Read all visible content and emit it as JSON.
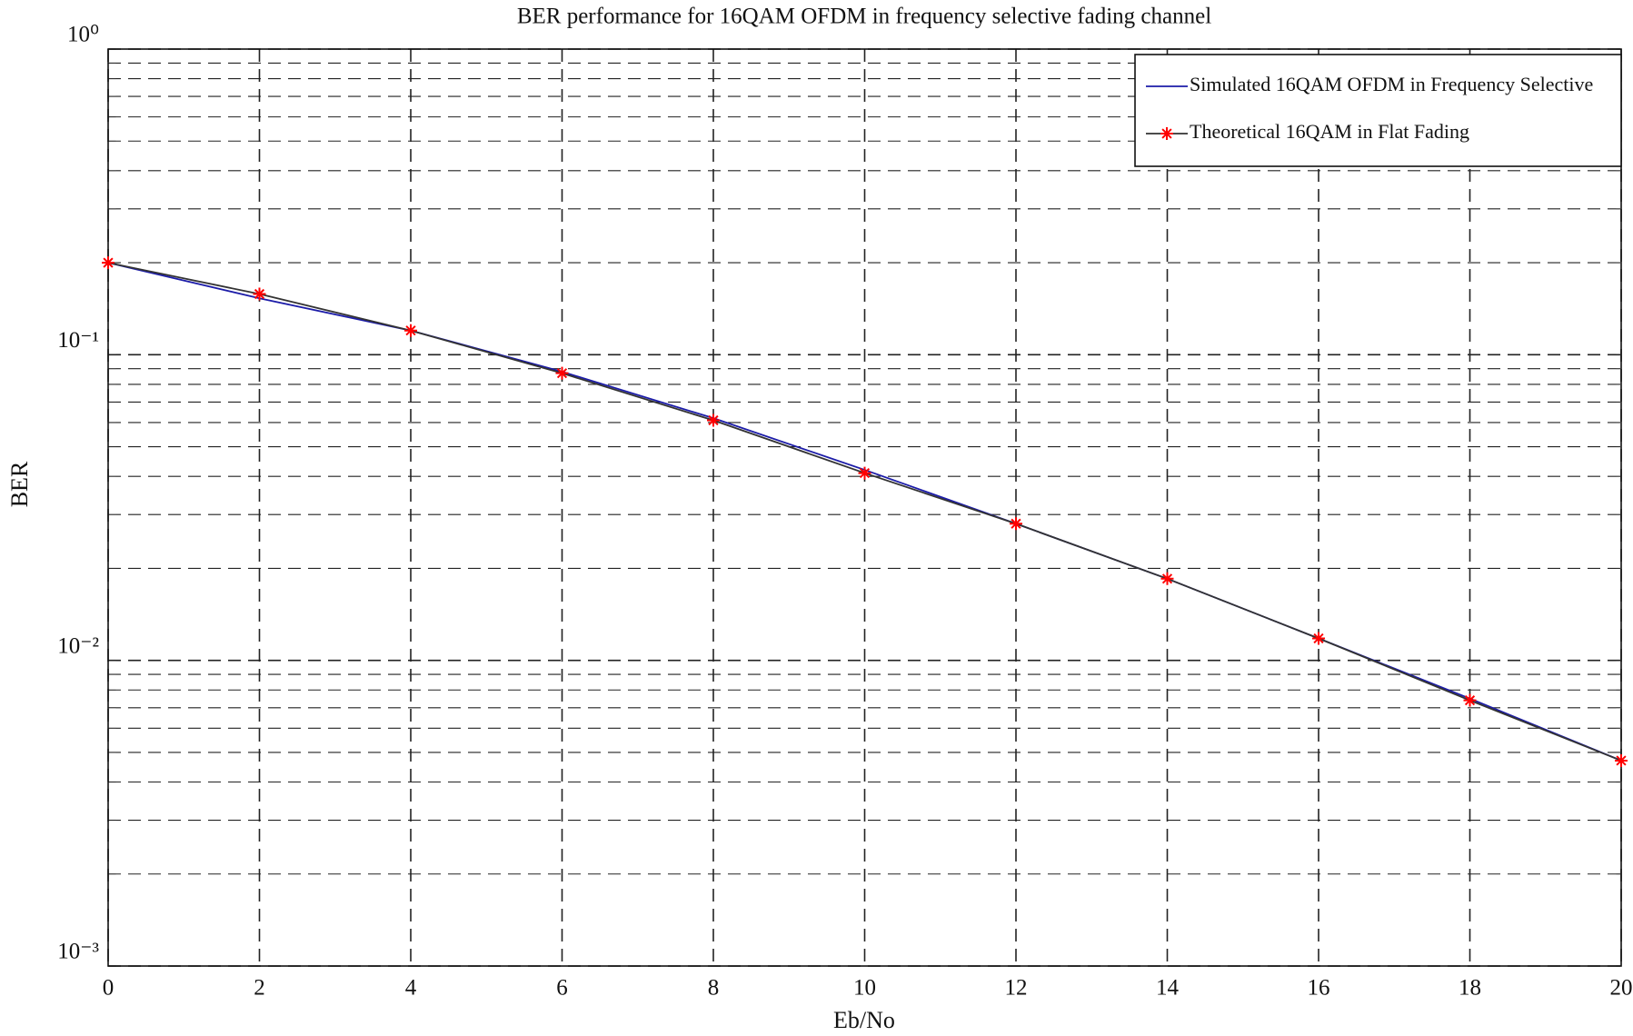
{
  "chart_data": {
    "type": "line",
    "title": "BER performance for 16QAM OFDM in frequency selective fading channel",
    "x_label": "Eb/No",
    "y_label": "BER",
    "x": [
      0,
      2,
      4,
      6,
      8,
      10,
      12,
      14,
      16,
      18,
      20
    ],
    "series": [
      {
        "name": "Simulated 16QAM OFDM in Frequency Selective",
        "color": "#1c1ca8",
        "values": [
          0.2,
          0.153,
          0.12,
          0.088,
          0.062,
          0.042,
          0.028,
          0.0185,
          0.0118,
          0.0075,
          0.0047
        ]
      },
      {
        "name": "Theoretical 16QAM in Flat Fading",
        "color": "#333333",
        "marker": "star",
        "marker_color": "#ff0000",
        "values": [
          0.2,
          0.158,
          0.12,
          0.087,
          0.061,
          0.041,
          0.028,
          0.0185,
          0.0118,
          0.0074,
          0.0047
        ]
      }
    ],
    "xlim": [
      0,
      20
    ],
    "xticks": [
      0,
      2,
      4,
      6,
      8,
      10,
      12,
      14,
      16,
      18,
      20
    ],
    "ylim": [
      0.001,
      1
    ],
    "yticks": [
      {
        "value": 0.001,
        "label": "10⁻³"
      },
      {
        "value": 0.01,
        "label": "10⁻²"
      },
      {
        "value": 0.1,
        "label": "10⁻¹"
      },
      {
        "value": 1,
        "label": "10⁰"
      }
    ],
    "y_log": true,
    "grid": true,
    "minor_grid": true,
    "legend": "upper right"
  }
}
